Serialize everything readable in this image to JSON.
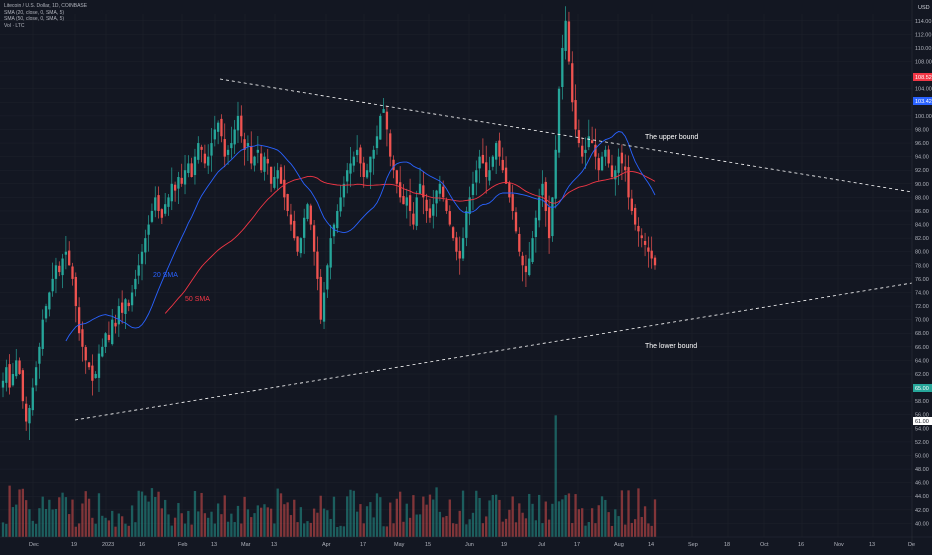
{
  "legend": {
    "title": "Litecoin / U.S. Dollar, 1D, COINBASE",
    "line2": "SMA (20, close, 0, SMA, 5)",
    "line3": "SMA (50, close, 0, SMA, 5)",
    "line4": "Vol · LTC"
  },
  "currency": "USD",
  "colors": {
    "background": "#131722",
    "up": "#26a69a",
    "down": "#ef5350",
    "sma20": "#2962ff",
    "sma50": "#f23645",
    "grid": "#1e222d",
    "dashed": "#ffffff"
  },
  "annotations": {
    "upper_bound": "The upper bound",
    "lower_bound": "The lower bound",
    "sma20_label": "20 SMA",
    "sma50_label": "50 SMA"
  },
  "price_tags": [
    {
      "value": "108.52",
      "color": "#f23645"
    },
    {
      "value": "103.42",
      "color": "#2962ff"
    },
    {
      "value": "65.00",
      "color": "#26a69a"
    },
    {
      "value": "61.00",
      "color": "#ffffff"
    }
  ],
  "chart_data": {
    "type": "candlestick",
    "y_ticks": [
      "114.00",
      "112.00",
      "110.00",
      "108.00",
      "106.00",
      "104.00",
      "102.00",
      "100.00",
      "98.00",
      "96.00",
      "94.00",
      "92.00",
      "90.00",
      "88.00",
      "86.00",
      "84.00",
      "82.00",
      "80.00",
      "78.00",
      "76.00",
      "74.00",
      "72.00",
      "70.00",
      "68.00",
      "66.00",
      "64.00",
      "62.00",
      "60.00",
      "58.00",
      "56.00",
      "54.00",
      "52.00",
      "50.00",
      "48.00",
      "46.00",
      "44.00",
      "42.00",
      "40.00"
    ],
    "x_ticks": [
      "Dec",
      "19",
      "2023",
      "16",
      "Feb",
      "13",
      "Mar",
      "13",
      "Apr",
      "17",
      "May",
      "15",
      "Jun",
      "19",
      "Jul",
      "17",
      "Aug",
      "14",
      "Sep",
      "18",
      "Oct",
      "16",
      "Nov",
      "13",
      "De"
    ],
    "ohlc_close": [
      61,
      63,
      60,
      62,
      64,
      62,
      58,
      55,
      57,
      60,
      63,
      66,
      70,
      72,
      74,
      76,
      78,
      77,
      79,
      80,
      78,
      76,
      72,
      68,
      66,
      64,
      63,
      61,
      62,
      65,
      66,
      68,
      67,
      70,
      69,
      72,
      71,
      73,
      72,
      74,
      76,
      78,
      80,
      82,
      84,
      86,
      88,
      86,
      85,
      87,
      88,
      90,
      89,
      91,
      90,
      92,
      93,
      91,
      94,
      96,
      95,
      93,
      94,
      96,
      98,
      99,
      97,
      94,
      95,
      96,
      98,
      100,
      97,
      95,
      96,
      93,
      94,
      95,
      92,
      94,
      93,
      90,
      91,
      92,
      90,
      88,
      86,
      84,
      82,
      80,
      82,
      85,
      87,
      84,
      80,
      76,
      70,
      74,
      78,
      82,
      84,
      86,
      88,
      90,
      92,
      93,
      94,
      95,
      93,
      91,
      92,
      94,
      95,
      97,
      100,
      101,
      98,
      94,
      92,
      90,
      88,
      87,
      88,
      86,
      84,
      88,
      90,
      88,
      86,
      85,
      87,
      89,
      90,
      88,
      86,
      84,
      82,
      80,
      79,
      82,
      86,
      88,
      90,
      92,
      94,
      93,
      91,
      92,
      94,
      96,
      94,
      92,
      90,
      88,
      86,
      83,
      80,
      78,
      77,
      79,
      82,
      85,
      88,
      90,
      86,
      82,
      88,
      95,
      104,
      110,
      114,
      108,
      102,
      98,
      96,
      94,
      95,
      97,
      96,
      94,
      92,
      94,
      95,
      93,
      91,
      92,
      94,
      93,
      92,
      88,
      86,
      84,
      83,
      82,
      81,
      80,
      79,
      78
    ],
    "ylim": [
      38,
      115
    ],
    "sma20": {
      "name": "20 SMA"
    },
    "sma50": {
      "name": "50 SMA"
    }
  }
}
